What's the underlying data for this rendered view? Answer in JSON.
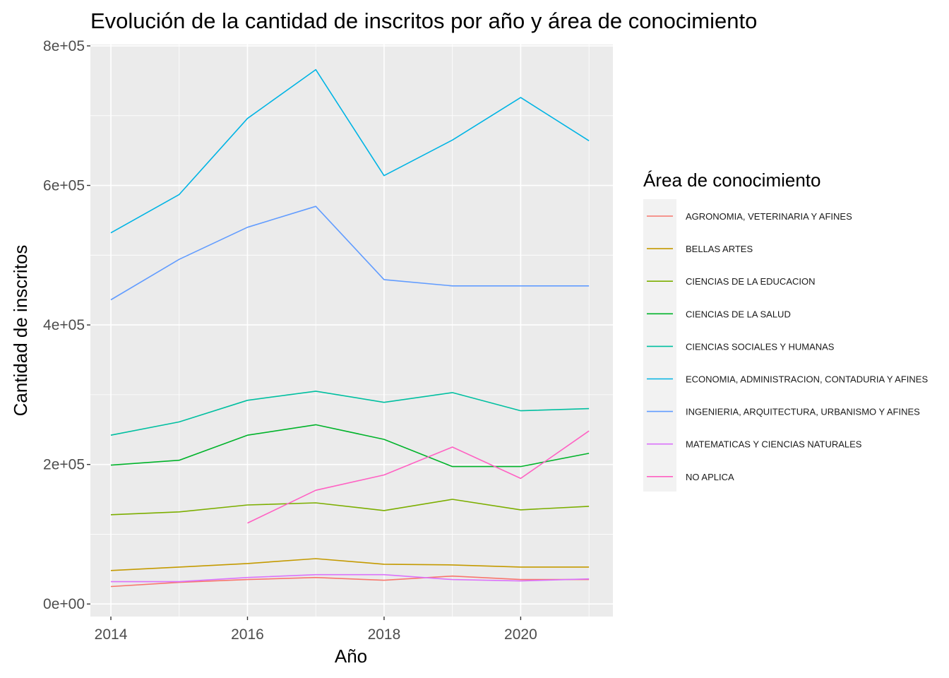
{
  "chart_data": {
    "type": "line",
    "title": "Evolución de la cantidad de inscritos por año y área de conocimiento",
    "xlabel": "Año",
    "ylabel": "Cantidad de inscritos",
    "xlim": [
      2013.7,
      2021.35
    ],
    "ylim": [
      -18000,
      802000
    ],
    "x_ticks": [
      2014,
      2016,
      2018,
      2020
    ],
    "x_tick_labels": [
      "2014",
      "2016",
      "2018",
      "2020"
    ],
    "y_ticks": [
      0,
      200000,
      400000,
      600000,
      800000
    ],
    "y_tick_labels": [
      "0e+00",
      "2e+05",
      "4e+05",
      "6e+05",
      "8e+05"
    ],
    "grid": true,
    "legend": {
      "title": "Área de conocimiento",
      "position": "right"
    },
    "series": [
      {
        "name": "AGRONOMIA, VETERINARIA Y AFINES",
        "color": "#F8766D",
        "x": [
          2014,
          2015,
          2016,
          2017,
          2018,
          2019,
          2020,
          2021
        ],
        "y": [
          25000,
          31000,
          35000,
          38000,
          34000,
          40000,
          35000,
          35000
        ]
      },
      {
        "name": "BELLAS ARTES",
        "color": "#C49A00",
        "x": [
          2014,
          2015,
          2016,
          2017,
          2018,
          2019,
          2020,
          2021
        ],
        "y": [
          48000,
          53000,
          58000,
          65000,
          57000,
          56000,
          53000,
          53000
        ]
      },
      {
        "name": "CIENCIAS DE LA EDUCACION",
        "color": "#7CAE00",
        "x": [
          2014,
          2015,
          2016,
          2017,
          2018,
          2019,
          2020,
          2021
        ],
        "y": [
          128000,
          132000,
          142000,
          145000,
          134000,
          150000,
          135000,
          140000
        ]
      },
      {
        "name": "CIENCIAS DE LA SALUD",
        "color": "#00B32A",
        "x": [
          2014,
          2015,
          2016,
          2017,
          2018,
          2019,
          2020,
          2021
        ],
        "y": [
          199000,
          206000,
          242000,
          257000,
          236000,
          197000,
          197000,
          216000
        ]
      },
      {
        "name": "CIENCIAS SOCIALES Y HUMANAS",
        "color": "#00BFA0",
        "x": [
          2014,
          2015,
          2016,
          2017,
          2018,
          2019,
          2020,
          2021
        ],
        "y": [
          242000,
          261000,
          292000,
          305000,
          289000,
          303000,
          277000,
          280000
        ]
      },
      {
        "name": "ECONOMIA, ADMINISTRACION, CONTADURIA Y AFINES",
        "color": "#00B4E4",
        "x": [
          2014,
          2015,
          2016,
          2017,
          2018,
          2019,
          2020,
          2021
        ],
        "y": [
          532000,
          587000,
          696000,
          766000,
          614000,
          665000,
          726000,
          664000
        ]
      },
      {
        "name": "INGENIERIA, ARQUITECTURA, URBANISMO Y AFINES",
        "color": "#619CFF",
        "x": [
          2014,
          2015,
          2016,
          2017,
          2018,
          2019,
          2020,
          2021
        ],
        "y": [
          436000,
          494000,
          540000,
          570000,
          465000,
          456000,
          456000,
          456000
        ]
      },
      {
        "name": "MATEMATICAS Y CIENCIAS NATURALES",
        "color": "#DB72FB",
        "x": [
          2014,
          2015,
          2016,
          2017,
          2018,
          2019,
          2020,
          2021
        ],
        "y": [
          32000,
          32000,
          38000,
          42000,
          42000,
          35000,
          33000,
          36000
        ]
      },
      {
        "name": "NO APLICA",
        "color": "#FF61C3",
        "x": [
          2016,
          2017,
          2018,
          2019,
          2020,
          2021
        ],
        "y": [
          116000,
          163000,
          185000,
          225000,
          180000,
          248000
        ]
      }
    ]
  }
}
